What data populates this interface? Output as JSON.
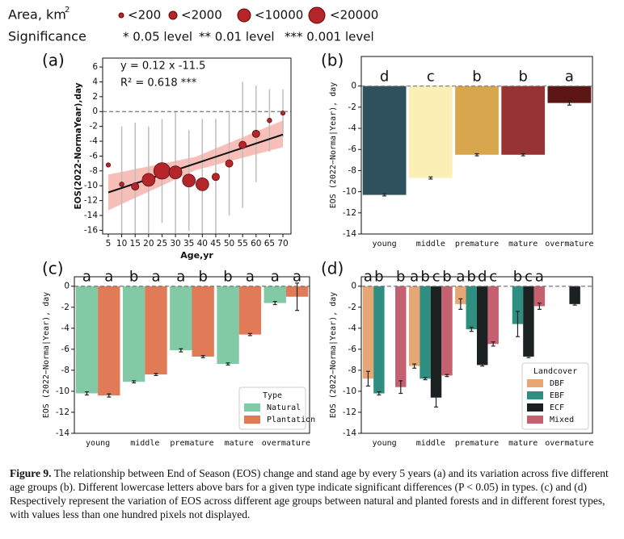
{
  "header": {
    "area_title": "Area, km",
    "area_sup": "2",
    "area_sizes": [
      "<200",
      "<2000",
      "<10000",
      "<20000"
    ],
    "significance_title": "Significance",
    "significance_levels": [
      "* 0.05 level",
      "** 0.01 level",
      "*** 0.001 level"
    ]
  },
  "chart_data": [
    {
      "type": "scatter",
      "title": "(a)",
      "x": [
        5,
        10,
        15,
        20,
        25,
        30,
        35,
        40,
        45,
        50,
        55,
        60,
        65,
        70
      ],
      "values": [
        -7.2,
        -9.8,
        -10.1,
        -9.2,
        -8.0,
        -8.2,
        -9.3,
        -9.8,
        -8.8,
        -7.0,
        -4.5,
        -3.0,
        -1.2,
        -0.2
      ],
      "errors": [
        0,
        7.8,
        8.6,
        7.2,
        7.0,
        8.2,
        6.8,
        8.8,
        7.8,
        7.0,
        8.5,
        6.5,
        4.2,
        3.2
      ],
      "sizes": [
        100,
        150,
        1500,
        8000,
        15000,
        8000,
        8000,
        8000,
        1500,
        1500,
        1500,
        1500,
        150,
        100
      ],
      "color": "#b5262a",
      "error_color": "#bdbdbd",
      "fit_color": "#111111",
      "band_color": "#f4a9a0",
      "fit_slope": 0.12,
      "fit_intercept": -11.5,
      "band": {
        "x": [
          5,
          37.5,
          70
        ],
        "lower": [
          -13.3,
          -7.9,
          -4.8
        ],
        "upper": [
          -8.5,
          -6.1,
          -1.2
        ]
      },
      "annotations": [
        "y =  0.12 x -11.5",
        "R² = 0.618 ***"
      ],
      "xlim": [
        2.9,
        73
      ],
      "xticks": [
        5,
        10,
        15,
        20,
        25,
        30,
        35,
        40,
        45,
        50,
        55,
        60,
        65,
        70
      ],
      "ylim": [
        -16.5,
        7.2
      ],
      "yticks": [
        6,
        4,
        2,
        0,
        -2,
        -4,
        -6,
        -8,
        -10,
        -12,
        -14,
        -16
      ],
      "xlabel": "Age,yr",
      "ylabel": "EOS(2022-NormaYear),day",
      "hline": 0
    },
    {
      "type": "bar",
      "title": "(b)",
      "categories": [
        "young",
        "middle",
        "premature",
        "mature",
        "overmature"
      ],
      "values": [
        -10.3,
        -8.7,
        -6.5,
        -6.5,
        -1.6
      ],
      "errors": [
        0.1,
        0.1,
        0.1,
        0.1,
        0.2
      ],
      "colors": [
        "#2f515d",
        "#faf0b6",
        "#d8a64c",
        "#983333",
        "#5b1515"
      ],
      "letters": [
        "d",
        "c",
        "b",
        "b",
        "a"
      ],
      "ylim": [
        -14,
        2.8
      ],
      "yticks": [
        0,
        -2,
        -4,
        -6,
        -8,
        -10,
        -12,
        -14
      ],
      "ylabel": "EOS (2022−Norma|Year), day",
      "hline": 0
    },
    {
      "type": "bar",
      "title": "(c)",
      "categories": [
        "young",
        "middle",
        "premature",
        "mature",
        "overmature"
      ],
      "series": [
        {
          "name": "Natural",
          "color": "#82c9a6",
          "values": [
            -10.2,
            -9.1,
            -6.1,
            -7.4,
            -1.6
          ],
          "errors": [
            0.15,
            0.1,
            0.15,
            0.1,
            0.15
          ],
          "letters": [
            "a",
            "b",
            "a",
            "b",
            "a"
          ]
        },
        {
          "name": "Plantation",
          "color": "#e07a57",
          "values": [
            -10.4,
            -8.4,
            -6.7,
            -4.6,
            -1.0
          ],
          "errors": [
            0.15,
            0.1,
            0.1,
            0.1,
            1.3
          ],
          "letters": [
            "a",
            "a",
            "b",
            "a",
            "a"
          ]
        }
      ],
      "legend_title": "Type",
      "legend": "lower right",
      "ylim": [
        -14,
        0.9
      ],
      "yticks": [
        0,
        -2,
        -4,
        -6,
        -8,
        -10,
        -12,
        -14
      ],
      "ylabel": "EOS (2022−Norma|Year), day",
      "hline": 0
    },
    {
      "type": "bar",
      "title": "(d)",
      "categories": [
        "young",
        "middle",
        "premature",
        "mature",
        "overmature"
      ],
      "series": [
        {
          "name": "DBF",
          "color": "#e6a774",
          "values": [
            -8.8,
            -7.6,
            -1.7,
            null,
            null
          ],
          "errors": [
            0.7,
            0.2,
            0.5,
            null,
            null
          ],
          "letters": [
            "a",
            "a",
            "a",
            null,
            null
          ]
        },
        {
          "name": "EBF",
          "color": "#2e8e7f",
          "values": [
            -10.2,
            -8.8,
            -4.1,
            -3.6,
            null
          ],
          "errors": [
            0.15,
            0.1,
            0.2,
            1.2,
            null
          ],
          "letters": [
            "b",
            "b",
            "b",
            "b",
            null
          ]
        },
        {
          "name": "ECF",
          "color": "#1b2121",
          "values": [
            null,
            -10.6,
            -7.5,
            -6.7,
            -1.7
          ],
          "errors": [
            null,
            0.9,
            0.1,
            0.1,
            0.1
          ],
          "letters": [
            null,
            "c",
            "d",
            "c",
            null
          ]
        },
        {
          "name": "Mixed",
          "color": "#c4606f",
          "values": [
            -9.6,
            -8.5,
            -5.5,
            -1.9,
            null
          ],
          "errors": [
            0.6,
            0.1,
            0.2,
            0.3,
            null
          ],
          "letters": [
            "b",
            "b",
            "c",
            "a",
            null
          ]
        }
      ],
      "legend_title": "Landcover",
      "legend": "lower right",
      "ylim": [
        -14,
        0.9
      ],
      "yticks": [
        0,
        -2,
        -4,
        -6,
        -8,
        -10,
        -12,
        -14
      ],
      "ylabel": "EOS (2022−Norma|Year), day",
      "hline": 0
    }
  ],
  "caption": {
    "label": "Figure 9.",
    "text": "The relationship between End of Season (EOS) change and stand age by every 5 years (a) and its variation across five different age groups (b). Different lowercase letters above bars for a given type indicate significant differences (P < 0.05) in types. (c) and (d) Respectively represent the variation of EOS across different age groups between natural and planted forests and in different forest types, with values less than one hundred pixels not displayed."
  }
}
